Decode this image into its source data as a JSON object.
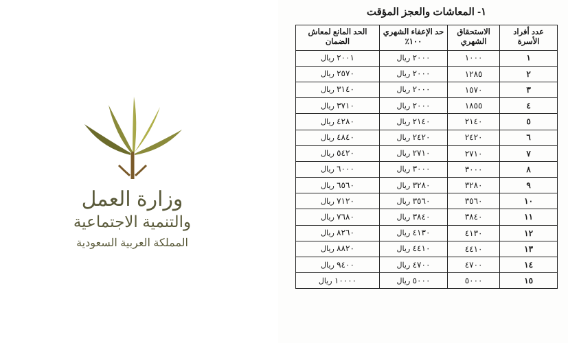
{
  "logo": {
    "colors": {
      "dark_olive": "#6b6b2b",
      "olive": "#8a8a3a",
      "light_olive": "#a8a84a",
      "yellow_green": "#b0b04a",
      "brown": "#7a5a2a"
    }
  },
  "ministry": {
    "line1": "وزارة العمل",
    "line2": "والتنمية الاجتماعية",
    "country": "المملكة العربية السعودية",
    "text_color": "#5a5a3a"
  },
  "table": {
    "title": "١- المعاشات والعجز المؤقت",
    "currency": "ريال",
    "columns": {
      "family": "عدد أفراد الأسرة",
      "entitlement": "الاستحقاق الشهري",
      "exemption": "حد الإعفاء الشهري ١٠٠٪",
      "limit": "الحد المانع لمعاش الضمان"
    },
    "rows": [
      {
        "family": "١",
        "entitlement": "١٠٠٠",
        "exemption": "٢٠٠٠",
        "limit": "٢٠٠١"
      },
      {
        "family": "٢",
        "entitlement": "١٢٨٥",
        "exemption": "٢٠٠٠",
        "limit": "٢٥٧٠"
      },
      {
        "family": "٣",
        "entitlement": "١٥٧٠",
        "exemption": "٢٠٠٠",
        "limit": "٣١٤٠"
      },
      {
        "family": "٤",
        "entitlement": "١٨٥٥",
        "exemption": "٢٠٠٠",
        "limit": "٣٧١٠"
      },
      {
        "family": "٥",
        "entitlement": "٢١٤٠",
        "exemption": "٢١٤٠",
        "limit": "٤٢٨٠"
      },
      {
        "family": "٦",
        "entitlement": "٢٤٢٠",
        "exemption": "٢٤٢٠",
        "limit": "٤٨٤٠"
      },
      {
        "family": "٧",
        "entitlement": "٢٧١٠",
        "exemption": "٢٧١٠",
        "limit": "٥٤٢٠"
      },
      {
        "family": "٨",
        "entitlement": "٣٠٠٠",
        "exemption": "٣٠٠٠",
        "limit": "٦٠٠٠"
      },
      {
        "family": "٩",
        "entitlement": "٣٢٨٠",
        "exemption": "٣٢٨٠",
        "limit": "٦٥٦٠"
      },
      {
        "family": "١٠",
        "entitlement": "٣٥٦٠",
        "exemption": "٣٥٦٠",
        "limit": "٧١٢٠"
      },
      {
        "family": "١١",
        "entitlement": "٣٨٤٠",
        "exemption": "٣٨٤٠",
        "limit": "٧٦٨٠"
      },
      {
        "family": "١٢",
        "entitlement": "٤١٣٠",
        "exemption": "٤١٣٠",
        "limit": "٨٢٦٠"
      },
      {
        "family": "١٣",
        "entitlement": "٤٤١٠",
        "exemption": "٤٤١٠",
        "limit": "٨٨٢٠"
      },
      {
        "family": "١٤",
        "entitlement": "٤٧٠٠",
        "exemption": "٤٧٠٠",
        "limit": "٩٤٠٠"
      },
      {
        "family": "١٥",
        "entitlement": "٥٠٠٠",
        "exemption": "٥٠٠٠",
        "limit": "١٠٠٠٠"
      }
    ]
  }
}
